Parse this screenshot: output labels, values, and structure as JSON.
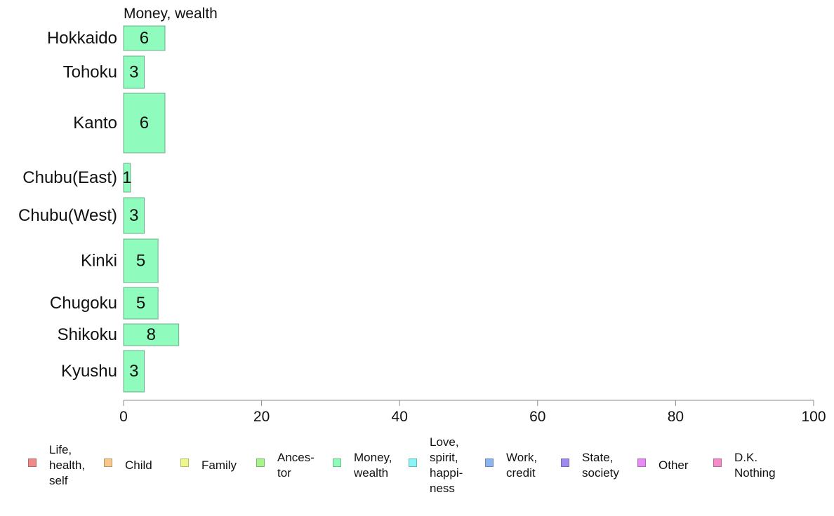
{
  "chart_data": {
    "type": "bar",
    "orientation": "horizontal",
    "title": "Money, wealth",
    "categories": [
      "Hokkaido",
      "Tohoku",
      "Kanto",
      "Chubu(East)",
      "Chubu(West)",
      "Kinki",
      "Chugoku",
      "Shikoku",
      "Kyushu"
    ],
    "values": [
      6,
      3,
      6,
      1,
      3,
      5,
      5,
      8,
      3
    ],
    "data_labels": [
      "6",
      "3",
      "6",
      "1",
      "3",
      "5",
      "5",
      "8",
      "3"
    ],
    "xlim": [
      0,
      100
    ],
    "xticks": [
      0,
      20,
      40,
      60,
      80,
      100
    ],
    "xtick_labels": [
      "0",
      "20",
      "40",
      "60",
      "80",
      "100"
    ],
    "bar_color": "#8ffbbd",
    "grid": false,
    "legend": {
      "placement": "bottom",
      "items": [
        {
          "label": "Life,\nhealth,\nself",
          "color": "#f08a88"
        },
        {
          "label": "Child",
          "color": "#f8c88a"
        },
        {
          "label": "Family",
          "color": "#eef78c"
        },
        {
          "label": "Ances-\ntor",
          "color": "#a6f58a"
        },
        {
          "label": "Money,\nwealth",
          "color": "#8ffbbd"
        },
        {
          "label": "Love,\nspirit,\nhappi-\nness",
          "color": "#8af5f8"
        },
        {
          "label": "Work,\ncredit",
          "color": "#8ab5f0"
        },
        {
          "label": "State,\nsociety",
          "color": "#9f8af0"
        },
        {
          "label": "Other",
          "color": "#e88af5"
        },
        {
          "label": "D.K.\nNothing",
          "color": "#f58ac8"
        }
      ]
    }
  }
}
